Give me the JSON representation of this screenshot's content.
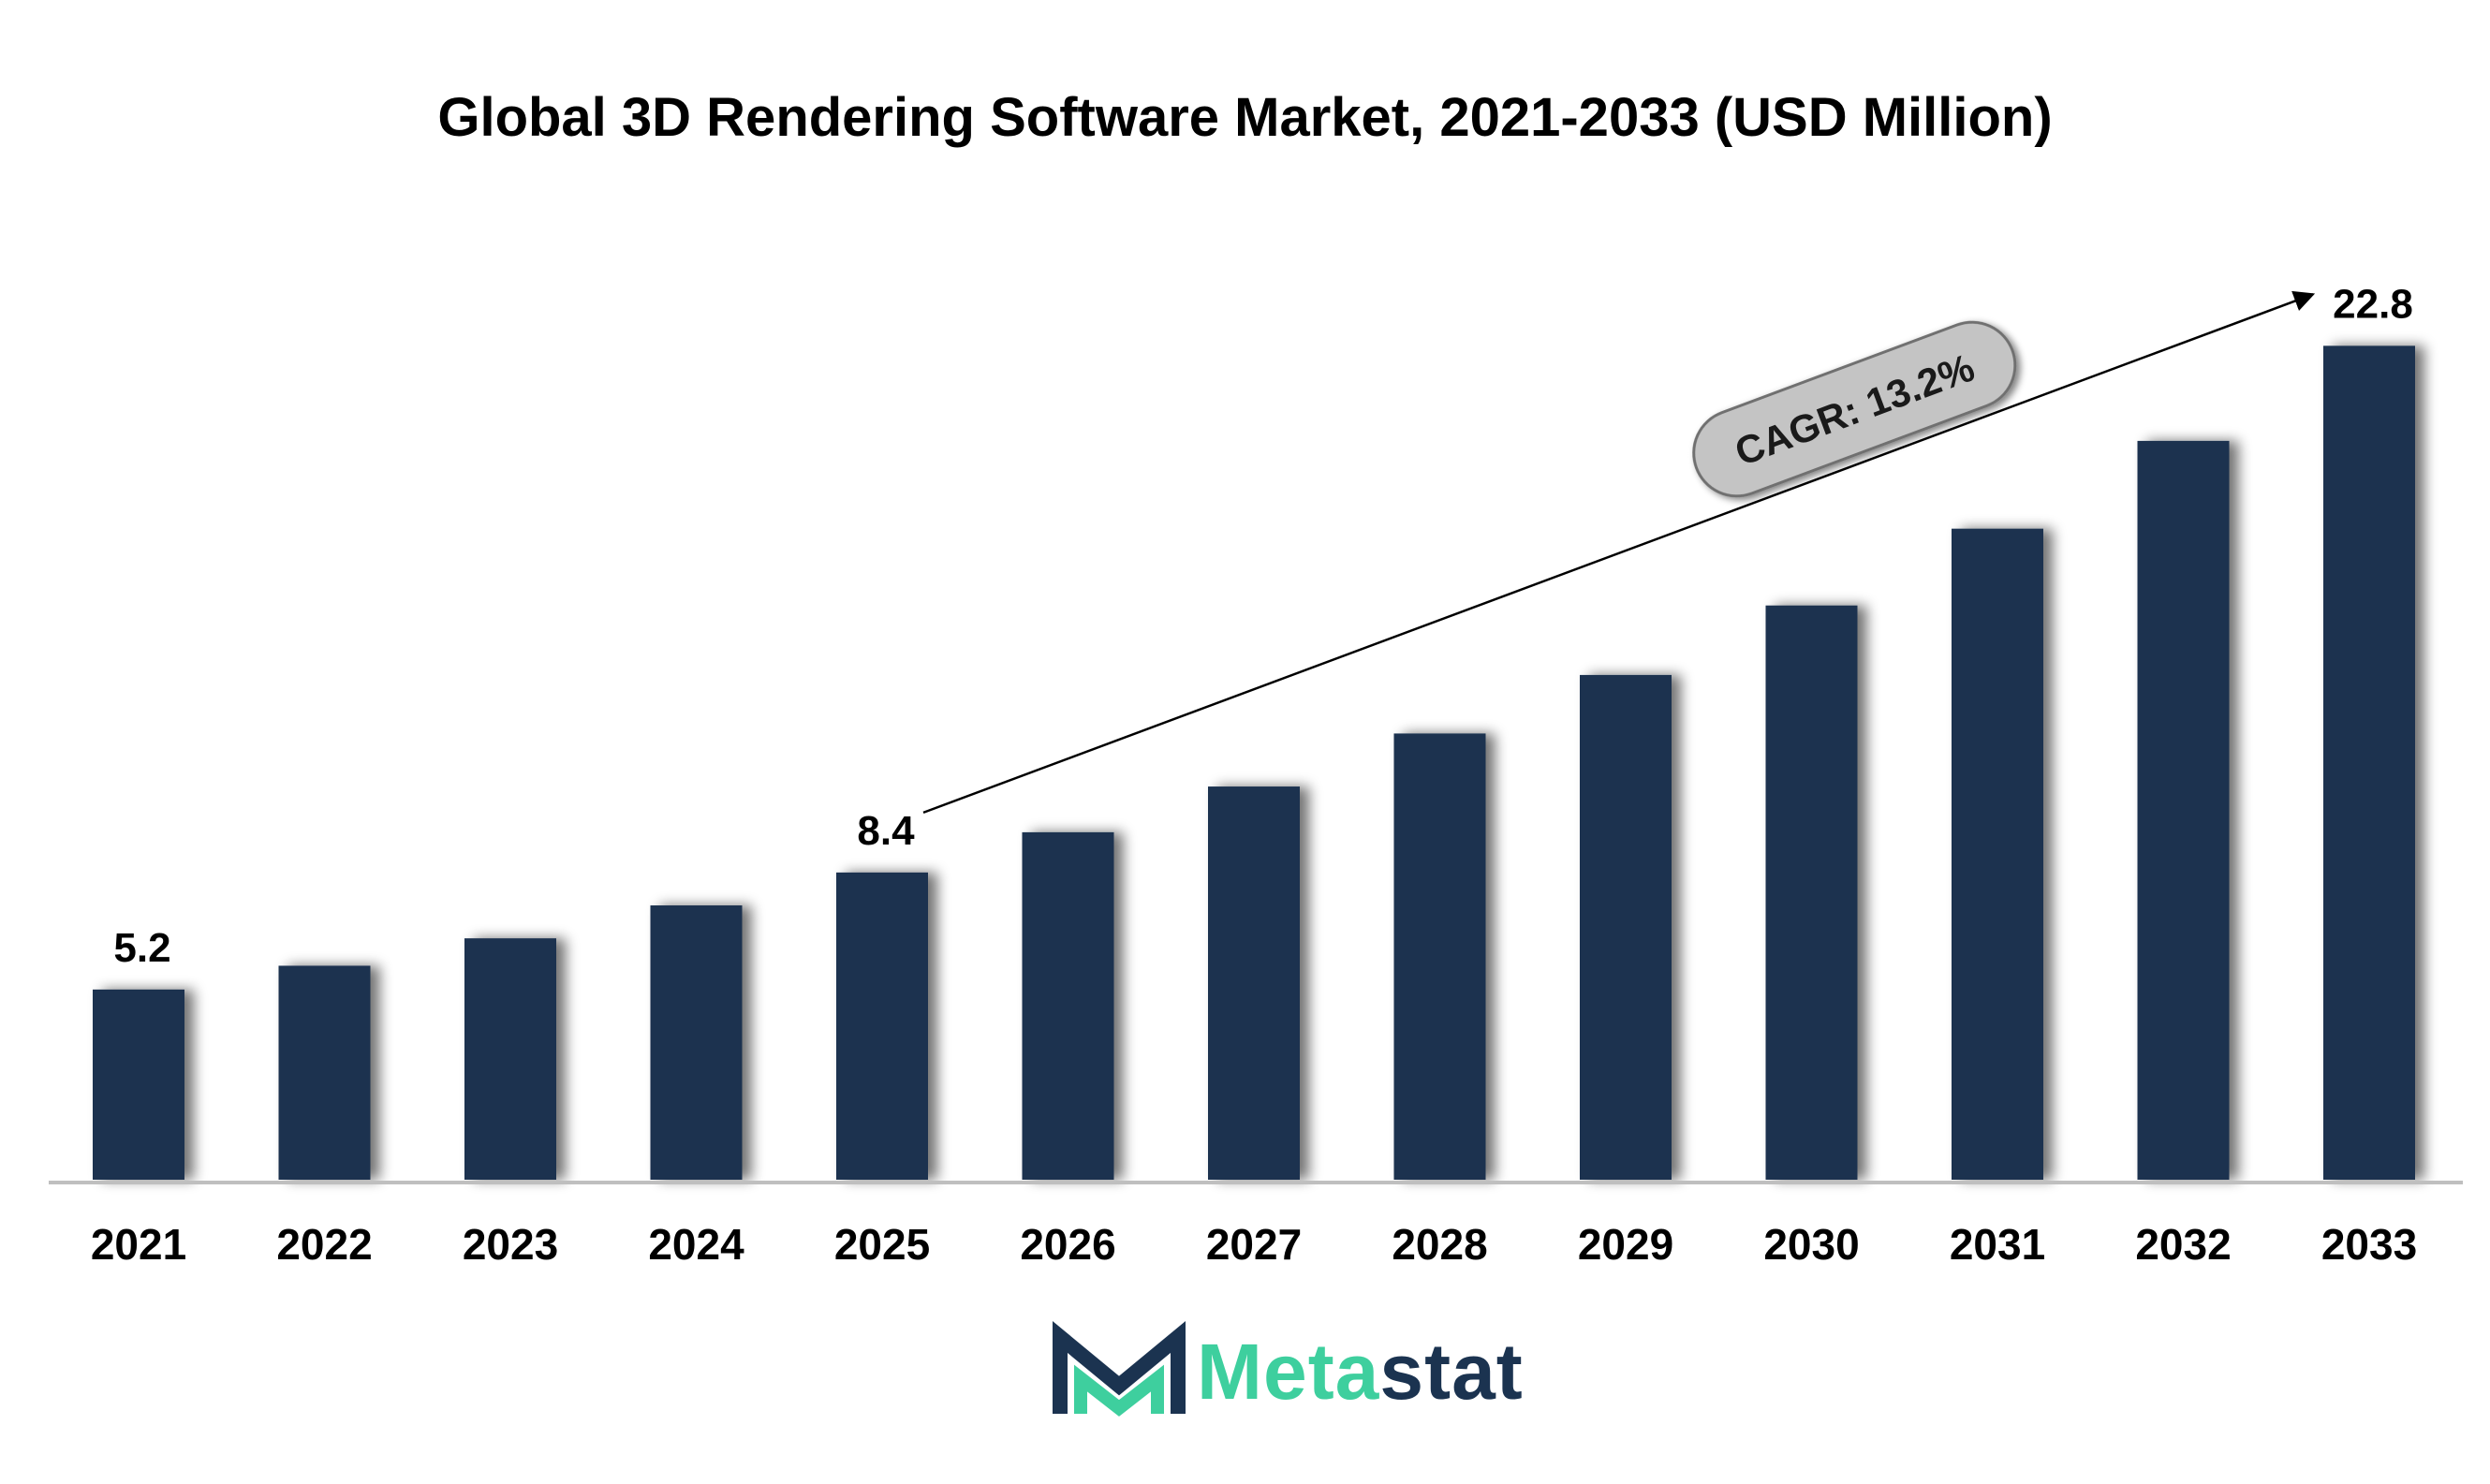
{
  "chart_data": {
    "type": "bar",
    "title": "Global 3D Rendering Software Market, 2021-2033 (USD Million)",
    "categories": [
      "2021",
      "2022",
      "2023",
      "2024",
      "2025",
      "2026",
      "2027",
      "2028",
      "2029",
      "2030",
      "2031",
      "2032",
      "2033"
    ],
    "series": [
      {
        "values": [
          5.2,
          5.85,
          6.6,
          7.5,
          8.4,
          9.5,
          10.75,
          12.2,
          13.8,
          15.7,
          17.8,
          20.2,
          22.8
        ],
        "color": "#1b3350"
      }
    ],
    "data_labels": [
      {
        "category": "2021",
        "text": "5.2"
      },
      {
        "category": "2025",
        "text": "8.4"
      },
      {
        "category": "2033",
        "text": "22.8"
      }
    ],
    "annotation": {
      "text": "CAGR: 13.2%",
      "from": "2025",
      "to": "2033"
    },
    "ylim": [
      0,
      23.5
    ],
    "grid": false,
    "legend": "none"
  },
  "brand": {
    "name_part1": "Meta",
    "name_part2": "stat",
    "icon": "metastat-m-logo"
  }
}
